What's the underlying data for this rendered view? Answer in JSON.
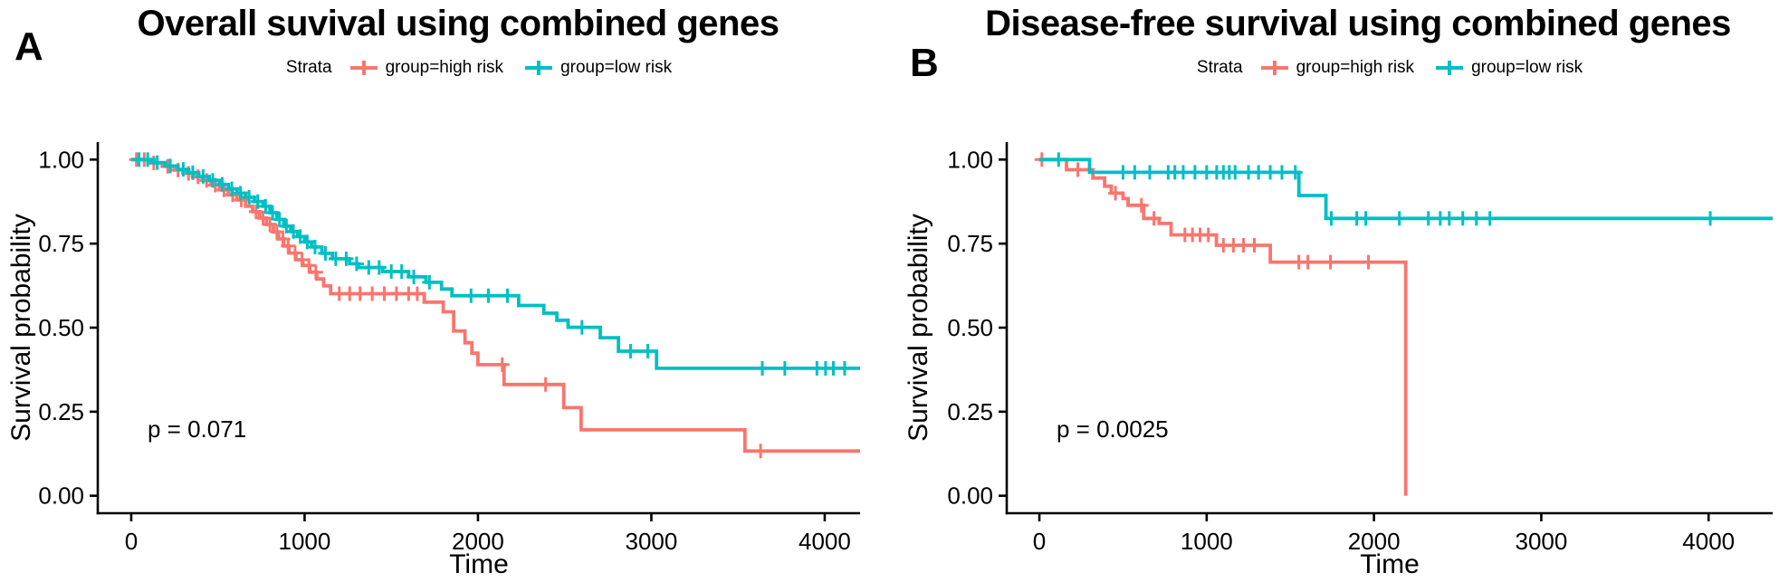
{
  "figure": {
    "background": "#ffffff",
    "axis_color": "#000000",
    "high_risk_color": "#F8766D",
    "low_risk_color": "#00BFC4"
  },
  "chart_data": [
    {
      "type": "line",
      "subtype": "kaplan-meier-step",
      "panel_label": "A",
      "title": "Overall suvival using combined genes",
      "xlabel": "Time",
      "ylabel": "Survival probability",
      "p_value": "p = 0.071",
      "legend": {
        "title": "Strata",
        "entries": [
          {
            "label": "group=high risk",
            "color": "#F8766D"
          },
          {
            "label": "group=low risk",
            "color": "#00BFC4"
          }
        ]
      },
      "x_ticks": [
        0,
        1000,
        2000,
        3000,
        4000
      ],
      "y_ticks": [
        "0.00",
        "0.25",
        "0.50",
        "0.75",
        "1.00"
      ],
      "xlim": [
        -193,
        4204
      ],
      "ylim": [
        -0.052,
        1.052
      ],
      "grid": false,
      "series": [
        {
          "name": "group=high risk",
          "color": "#F8766D",
          "end_time": 4204,
          "steps": [
            [
              0,
              1.0
            ],
            [
              110,
              0.99
            ],
            [
              180,
              0.98
            ],
            [
              250,
              0.969
            ],
            [
              310,
              0.959
            ],
            [
              360,
              0.949
            ],
            [
              410,
              0.938
            ],
            [
              460,
              0.924
            ],
            [
              510,
              0.91
            ],
            [
              560,
              0.895
            ],
            [
              610,
              0.88
            ],
            [
              660,
              0.861
            ],
            [
              700,
              0.845
            ],
            [
              740,
              0.826
            ],
            [
              780,
              0.807
            ],
            [
              820,
              0.785
            ],
            [
              850,
              0.764
            ],
            [
              880,
              0.743
            ],
            [
              910,
              0.722
            ],
            [
              950,
              0.702
            ],
            [
              990,
              0.685
            ],
            [
              1030,
              0.665
            ],
            [
              1070,
              0.645
            ],
            [
              1110,
              0.624
            ],
            [
              1150,
              0.601
            ],
            [
              1690,
              0.576
            ],
            [
              1800,
              0.547
            ],
            [
              1860,
              0.49
            ],
            [
              1925,
              0.455
            ],
            [
              1965,
              0.424
            ],
            [
              2000,
              0.39
            ],
            [
              2150,
              0.331
            ],
            [
              2495,
              0.262
            ],
            [
              2595,
              0.196
            ],
            [
              3540,
              0.133
            ]
          ],
          "censor_times": [
            30,
            75,
            130,
            210,
            270,
            330,
            385,
            435,
            485,
            535,
            585,
            635,
            720,
            760,
            800,
            840,
            875,
            905,
            945,
            985,
            1025,
            1065,
            1200,
            1260,
            1320,
            1390,
            1460,
            1530,
            1600,
            1650,
            2140,
            2390,
            3630
          ]
        },
        {
          "name": "group=low risk",
          "color": "#00BFC4",
          "end_time": 4204,
          "steps": [
            [
              0,
              1.0
            ],
            [
              130,
              0.991
            ],
            [
              200,
              0.981
            ],
            [
              270,
              0.971
            ],
            [
              330,
              0.961
            ],
            [
              390,
              0.95
            ],
            [
              450,
              0.938
            ],
            [
              510,
              0.926
            ],
            [
              560,
              0.913
            ],
            [
              610,
              0.9
            ],
            [
              660,
              0.888
            ],
            [
              710,
              0.875
            ],
            [
              760,
              0.861
            ],
            [
              800,
              0.842
            ],
            [
              840,
              0.822
            ],
            [
              880,
              0.802
            ],
            [
              920,
              0.786
            ],
            [
              960,
              0.771
            ],
            [
              1000,
              0.755
            ],
            [
              1040,
              0.74
            ],
            [
              1100,
              0.721
            ],
            [
              1160,
              0.705
            ],
            [
              1260,
              0.69
            ],
            [
              1310,
              0.679
            ],
            [
              1450,
              0.667
            ],
            [
              1600,
              0.651
            ],
            [
              1700,
              0.635
            ],
            [
              1790,
              0.615
            ],
            [
              1850,
              0.595
            ],
            [
              2235,
              0.566
            ],
            [
              2380,
              0.543
            ],
            [
              2455,
              0.522
            ],
            [
              2520,
              0.501
            ],
            [
              2705,
              0.47
            ],
            [
              2810,
              0.43
            ],
            [
              3030,
              0.379
            ]
          ],
          "censor_times": [
            45,
            95,
            150,
            225,
            300,
            355,
            415,
            470,
            525,
            580,
            630,
            680,
            730,
            775,
            815,
            855,
            895,
            935,
            975,
            1015,
            1060,
            1120,
            1180,
            1240,
            1300,
            1370,
            1430,
            1500,
            1560,
            1630,
            1720,
            1960,
            2060,
            2170,
            2600,
            2880,
            2980,
            3640,
            3770,
            3955,
            4005,
            4050,
            4115
          ]
        }
      ]
    },
    {
      "type": "line",
      "subtype": "kaplan-meier-step",
      "panel_label": "B",
      "title": "Disease-free survival using combined genes",
      "xlabel": "Time",
      "ylabel": "Survival probability",
      "p_value": "p = 0.0025",
      "legend": {
        "title": "Strata",
        "entries": [
          {
            "label": "group=high risk",
            "color": "#F8766D"
          },
          {
            "label": "group=low risk",
            "color": "#00BFC4"
          }
        ]
      },
      "x_ticks": [
        0,
        1000,
        2000,
        3000,
        4000
      ],
      "y_ticks": [
        "0.00",
        "0.25",
        "0.50",
        "0.75",
        "1.00"
      ],
      "xlim": [
        -195,
        4383
      ],
      "ylim": [
        -0.052,
        1.052
      ],
      "grid": false,
      "series": [
        {
          "name": "group=high risk",
          "color": "#F8766D",
          "end_time": 2190,
          "steps": [
            [
              0,
              1.0
            ],
            [
              162,
              0.97
            ],
            [
              320,
              0.945
            ],
            [
              390,
              0.921
            ],
            [
              430,
              0.9
            ],
            [
              500,
              0.884
            ],
            [
              530,
              0.864
            ],
            [
              624,
              0.825
            ],
            [
              716,
              0.81
            ],
            [
              787,
              0.776
            ],
            [
              1058,
              0.745
            ],
            [
              1380,
              0.695
            ],
            [
              2190,
              0.0
            ]
          ],
          "censor_times": [
            15,
            230,
            455,
            610,
            685,
            870,
            915,
            960,
            1010,
            1100,
            1160,
            1220,
            1285,
            1551,
            1605,
            1740,
            1967
          ]
        },
        {
          "name": "group=low risk",
          "color": "#00BFC4",
          "end_time": 4383,
          "steps": [
            [
              0,
              1.0
            ],
            [
              300,
              0.962
            ],
            [
              1551,
              0.893
            ],
            [
              1713,
              0.825
            ]
          ],
          "censor_times": [
            115,
            500,
            570,
            660,
            770,
            810,
            860,
            930,
            1000,
            1060,
            1100,
            1135,
            1170,
            1250,
            1310,
            1380,
            1450,
            1530,
            1745,
            1897,
            1951,
            2152,
            2325,
            2396,
            2450,
            2531,
            2612,
            2693,
            4010
          ]
        }
      ]
    }
  ]
}
